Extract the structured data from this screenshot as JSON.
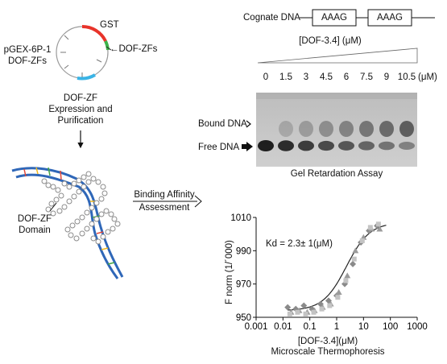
{
  "plasmid": {
    "name_line1": "pGEX-6P-1",
    "name_line2": "DOF-ZFs",
    "gst_label": "GST",
    "insert_label": "DOF-ZFs",
    "colors": {
      "gst": "#e8332a",
      "insert": "#3cb44a",
      "other": "#3ab4e6"
    }
  },
  "expression": {
    "line1": "DOF-ZF",
    "line2": "Expression and",
    "line3": "Purification"
  },
  "domain": {
    "line1": "DOF-ZF",
    "line2": "Domain"
  },
  "binding": {
    "line1": "Binding Affinity",
    "line2": "Assessment"
  },
  "cognate": {
    "label": "Cognate DNA",
    "boxes": [
      "AAAG",
      "AAAG"
    ]
  },
  "gel": {
    "conc_label": "[DOF-3.4] (μM)",
    "lanes": [
      "0",
      "1.5",
      "3",
      "4.5",
      "6",
      "7.5",
      "9",
      "10.5"
    ],
    "unit": "(μM)",
    "bound_label": "Bound DNA",
    "free_label": "Free DNA",
    "caption": "Gel Retardation Assay"
  },
  "mst": {
    "ylabel": "F norm (1/´000)",
    "xlabel": "[DOF-3.4](μM)",
    "caption": "Microscale Thermophoresis",
    "kd": "Kd = 2.3± 1(μM)"
  },
  "chart_data": {
    "type": "scatter",
    "xscale": "log",
    "xlim": [
      0.001,
      1000
    ],
    "ylim": [
      950,
      1010
    ],
    "xticks": [
      "0.001",
      "0.01",
      "0.1",
      "1",
      "10",
      "100",
      "1000"
    ],
    "yticks": [
      "950",
      "970",
      "990",
      "1010"
    ],
    "series": [
      {
        "marker": "diamond",
        "color": "#8a8a8a",
        "points": [
          [
            0.015,
            956
          ],
          [
            0.03,
            955
          ],
          [
            0.06,
            957
          ],
          [
            0.12,
            955
          ],
          [
            0.25,
            958
          ],
          [
            0.5,
            960
          ],
          [
            1,
            963
          ],
          [
            2,
            970
          ],
          [
            4,
            982
          ],
          [
            8,
            995
          ],
          [
            16,
            1002
          ],
          [
            32,
            1005
          ]
        ]
      },
      {
        "marker": "triangle",
        "color": "#9b9b9b",
        "points": [
          [
            0.02,
            953
          ],
          [
            0.04,
            954
          ],
          [
            0.08,
            953
          ],
          [
            0.15,
            954
          ],
          [
            0.3,
            956
          ],
          [
            0.6,
            958
          ],
          [
            1.2,
            965
          ],
          [
            2.5,
            975
          ],
          [
            5,
            990
          ],
          [
            10,
            998
          ],
          [
            20,
            1003
          ],
          [
            40,
            1003
          ]
        ]
      },
      {
        "marker": "square",
        "color": "#c4c4c4",
        "points": [
          [
            0.018,
            952
          ],
          [
            0.035,
            953
          ],
          [
            0.07,
            952
          ],
          [
            0.14,
            953
          ],
          [
            0.28,
            955
          ],
          [
            0.55,
            957
          ],
          [
            1.1,
            962
          ],
          [
            2.2,
            972
          ],
          [
            4.5,
            985
          ],
          [
            9,
            996
          ],
          [
            18,
            1004
          ],
          [
            36,
            1006
          ]
        ]
      }
    ],
    "fit": {
      "kd": 2.3,
      "bottom": 954,
      "top": 1007
    }
  }
}
